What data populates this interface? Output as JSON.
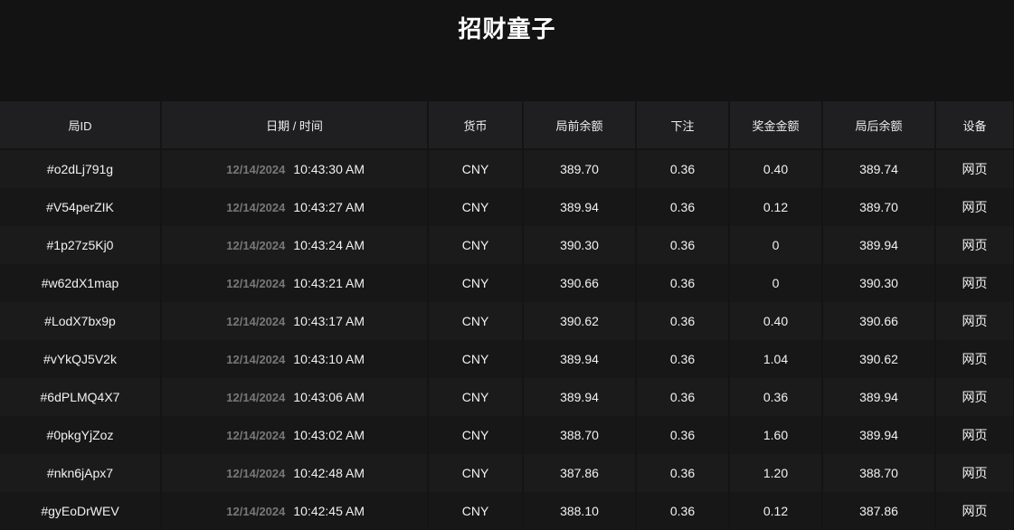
{
  "title": "招财童子",
  "columns": [
    "局ID",
    "日期 / 时间",
    "货币",
    "局前余额",
    "下注",
    "奖金金额",
    "局后余额",
    "设备"
  ],
  "rows": [
    {
      "id": "#o2dLj791g",
      "date": "12/14/2024",
      "time": "10:43:30 AM",
      "currency": "CNY",
      "before": "389.70",
      "bet": "0.36",
      "win": "0.40",
      "after": "389.74",
      "device": "网页"
    },
    {
      "id": "#V54perZIK",
      "date": "12/14/2024",
      "time": "10:43:27 AM",
      "currency": "CNY",
      "before": "389.94",
      "bet": "0.36",
      "win": "0.12",
      "after": "389.70",
      "device": "网页"
    },
    {
      "id": "#1p27z5Kj0",
      "date": "12/14/2024",
      "time": "10:43:24 AM",
      "currency": "CNY",
      "before": "390.30",
      "bet": "0.36",
      "win": "0",
      "after": "389.94",
      "device": "网页"
    },
    {
      "id": "#w62dX1map",
      "date": "12/14/2024",
      "time": "10:43:21 AM",
      "currency": "CNY",
      "before": "390.66",
      "bet": "0.36",
      "win": "0",
      "after": "390.30",
      "device": "网页"
    },
    {
      "id": "#LodX7bx9p",
      "date": "12/14/2024",
      "time": "10:43:17 AM",
      "currency": "CNY",
      "before": "390.62",
      "bet": "0.36",
      "win": "0.40",
      "after": "390.66",
      "device": "网页"
    },
    {
      "id": "#vYkQJ5V2k",
      "date": "12/14/2024",
      "time": "10:43:10 AM",
      "currency": "CNY",
      "before": "389.94",
      "bet": "0.36",
      "win": "1.04",
      "after": "390.62",
      "device": "网页"
    },
    {
      "id": "#6dPLMQ4X7",
      "date": "12/14/2024",
      "time": "10:43:06 AM",
      "currency": "CNY",
      "before": "389.94",
      "bet": "0.36",
      "win": "0.36",
      "after": "389.94",
      "device": "网页"
    },
    {
      "id": "#0pkgYjZoz",
      "date": "12/14/2024",
      "time": "10:43:02 AM",
      "currency": "CNY",
      "before": "388.70",
      "bet": "0.36",
      "win": "1.60",
      "after": "389.94",
      "device": "网页"
    },
    {
      "id": "#nkn6jApx7",
      "date": "12/14/2024",
      "time": "10:42:48 AM",
      "currency": "CNY",
      "before": "387.86",
      "bet": "0.36",
      "win": "1.20",
      "after": "388.70",
      "device": "网页"
    },
    {
      "id": "#gyEoDrWEV",
      "date": "12/14/2024",
      "time": "10:42:45 AM",
      "currency": "CNY",
      "before": "388.10",
      "bet": "0.36",
      "win": "0.12",
      "after": "387.86",
      "device": "网页"
    }
  ]
}
